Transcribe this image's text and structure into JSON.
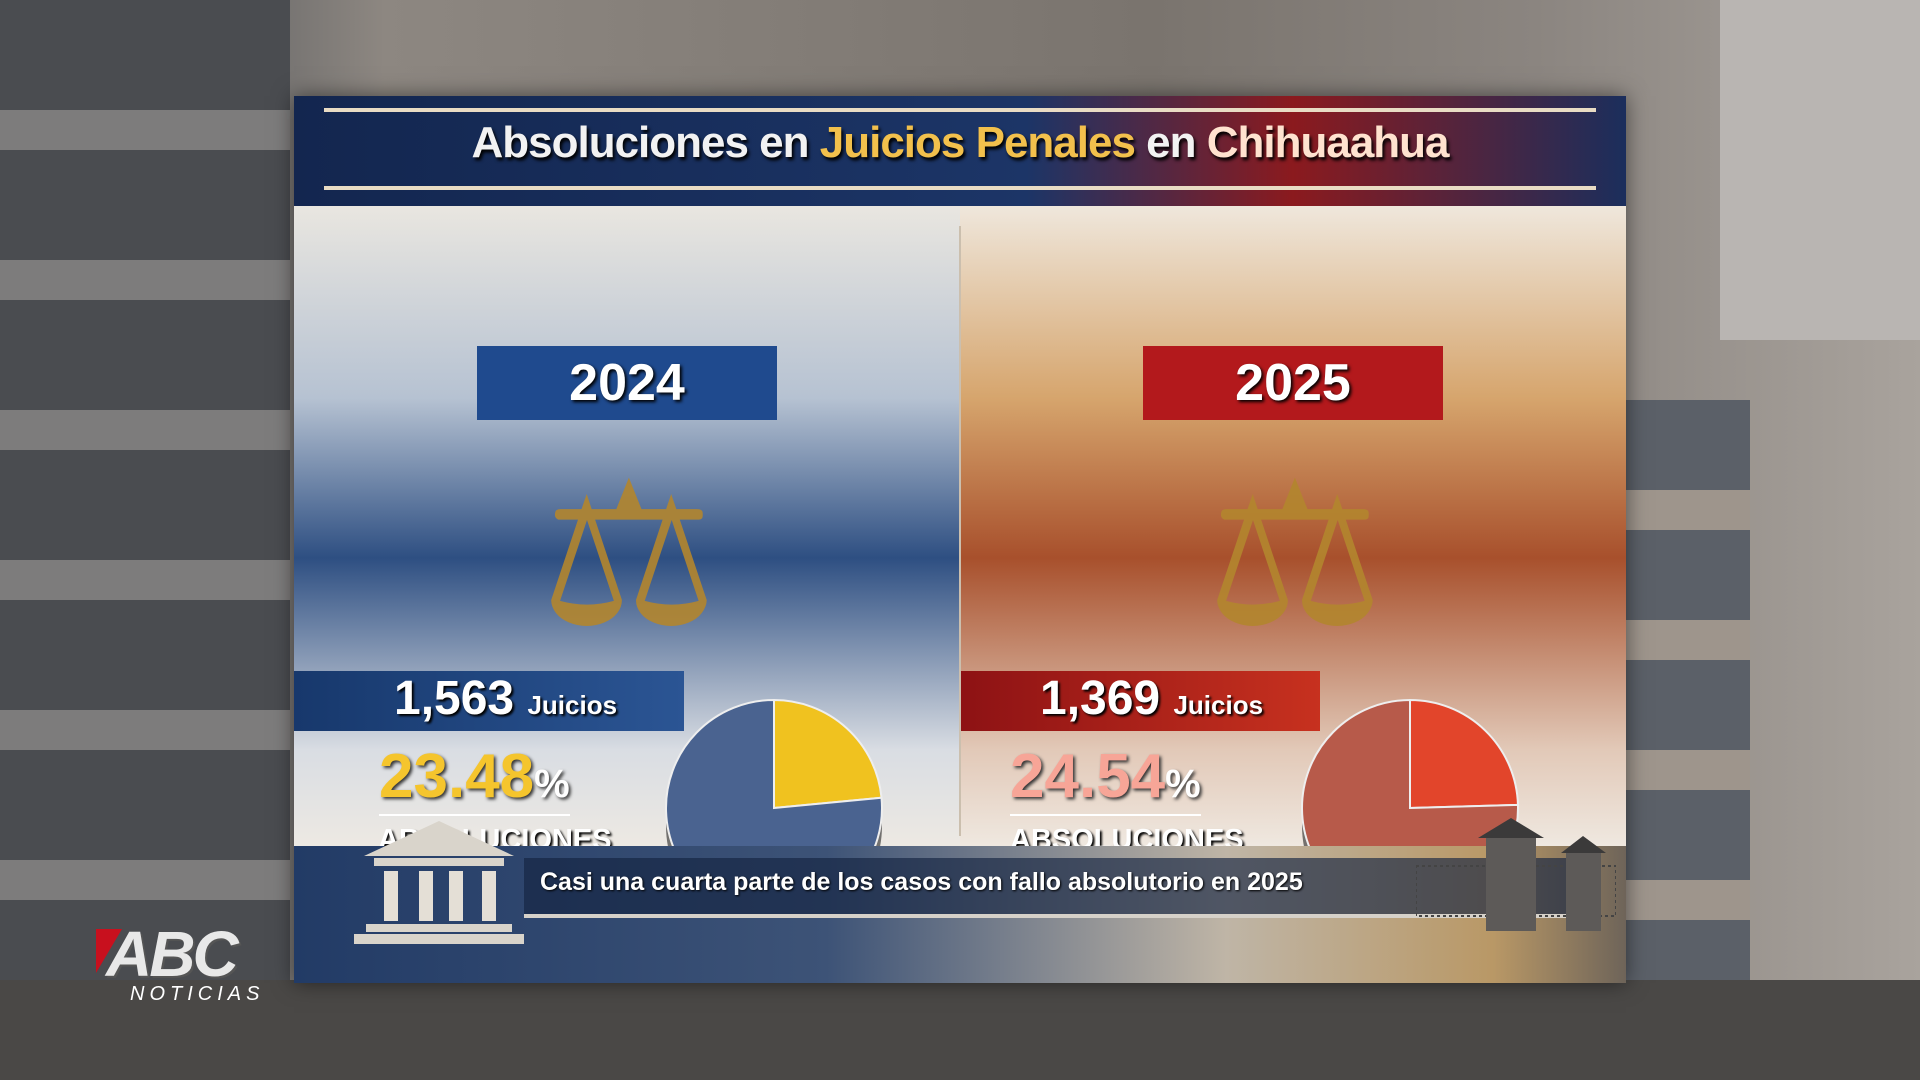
{
  "infographic": {
    "title": {
      "part1": "Absoluciones en ",
      "part2": "Juicios Penales",
      "part3": " en ",
      "part4": "Chihuaahua"
    },
    "panels": [
      {
        "year": "2024",
        "trials": "1,563",
        "trials_label": "Juicios",
        "percent_value": "23.48",
        "percent_sign": "%",
        "label": "ABSOLUCIONES",
        "slice_color": "#f0c21f",
        "pie_color": "#4a6390",
        "illustration": "scales-and-gavel"
      },
      {
        "year": "2025",
        "trials": "1,369",
        "trials_label": "Juicios",
        "percent_value": "24.54",
        "percent_sign": "%",
        "label": "ABSOLUCIONES",
        "slice_color": "#e2452b",
        "pie_color": "#b75a4a",
        "illustration": "lady-justice"
      }
    ],
    "caption": "Casi una cuarta parte de los casos con fallo absolutorio en 2025"
  },
  "chart_data": [
    {
      "type": "pie",
      "title": "2024",
      "categories": [
        "ABSOLUCIONES",
        "other"
      ],
      "values": [
        23.48,
        76.52
      ]
    },
    {
      "type": "pie",
      "title": "2025",
      "categories": [
        "ABSOLUCIONES",
        "other"
      ],
      "values": [
        24.54,
        75.46
      ]
    }
  ],
  "broadcaster": {
    "logo_main": "ABC",
    "logo_sub": "NOTICIAS"
  }
}
